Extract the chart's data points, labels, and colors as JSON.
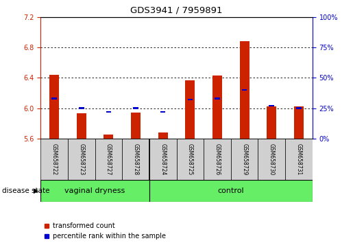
{
  "title": "GDS3941 / 7959891",
  "samples": [
    "GSM658722",
    "GSM658723",
    "GSM658727",
    "GSM658728",
    "GSM658724",
    "GSM658725",
    "GSM658726",
    "GSM658729",
    "GSM658730",
    "GSM658731"
  ],
  "red_values": [
    6.44,
    5.93,
    5.65,
    5.94,
    5.68,
    6.37,
    6.43,
    6.88,
    6.02,
    6.02
  ],
  "blue_percentile": [
    33,
    25,
    22,
    25,
    22,
    32,
    33,
    40,
    27,
    25
  ],
  "vaginal_count": 4,
  "ylim_left": [
    5.6,
    7.2
  ],
  "ylim_right": [
    0,
    100
  ],
  "yticks_left": [
    5.6,
    6.0,
    6.4,
    6.8,
    7.2
  ],
  "yticks_right": [
    0,
    25,
    50,
    75,
    100
  ],
  "grid_values": [
    6.0,
    6.4,
    6.8
  ],
  "bar_width": 0.35,
  "red_color": "#CC2200",
  "blue_color": "#0000CC",
  "bar_bottom": 5.6,
  "green_color": "#66EE66",
  "gray_color": "#D0D0D0",
  "legend_labels": [
    "transformed count",
    "percentile rank within the sample"
  ],
  "disease_state_label": "disease state"
}
